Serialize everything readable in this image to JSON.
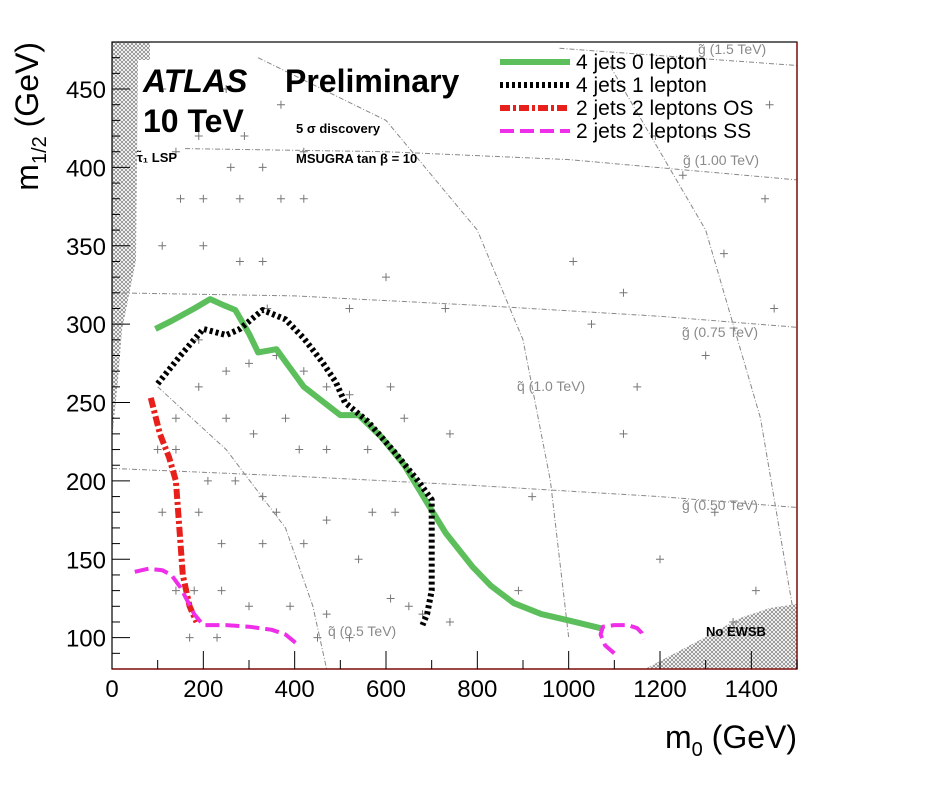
{
  "chart_data": {
    "type": "line",
    "title": "ATLAS Preliminary",
    "energy": "10 TeV",
    "discovery": "5 σ discovery",
    "model": "MSUGRA tan β = 10",
    "lsp_label": "τ̃₁ LSP",
    "no_ewsb_label": "No EWSB",
    "xlabel_main": "m",
    "xlabel_sub": "0",
    "xlabel_unit": " (GeV)",
    "ylabel_main": "m",
    "ylabel_sub": "1/2",
    "ylabel_unit": " (GeV)",
    "xlim": [
      0,
      1500
    ],
    "ylim": [
      80,
      480
    ],
    "xticks": [
      0,
      200,
      400,
      600,
      800,
      1000,
      1200,
      1400
    ],
    "yticks": [
      100,
      150,
      200,
      250,
      300,
      350,
      400,
      450
    ],
    "series": [
      {
        "name": "4 jets 0 lepton",
        "color": "#5cbf5c",
        "style": "solid",
        "x": [
          95,
          130,
          180,
          215,
          245,
          270,
          300,
          320,
          360,
          385,
          420,
          460,
          500,
          540,
          590,
          640,
          690,
          730,
          790,
          830,
          880,
          940,
          1000,
          1070
        ],
        "y": [
          297,
          302,
          310,
          316,
          312,
          309,
          294,
          282,
          284,
          274,
          260,
          251,
          242,
          242,
          228,
          210,
          186,
          167,
          145,
          133,
          122,
          115,
          111,
          106
        ]
      },
      {
        "name": "4 jets 1 lepton",
        "color": "#000000",
        "style": "dotted",
        "x": [
          100,
          150,
          200,
          250,
          280,
          330,
          380,
          420,
          460,
          490,
          510,
          560,
          620,
          670,
          700,
          700,
          690,
          680
        ],
        "y": [
          262,
          280,
          297,
          293,
          297,
          309,
          303,
          291,
          276,
          263,
          250,
          238,
          218,
          200,
          188,
          130,
          115,
          108
        ]
      },
      {
        "name": "2 jets 2 leptons OS",
        "color": "#e8201c",
        "style": "dashdot",
        "x": [
          85,
          105,
          125,
          140,
          145,
          150,
          155,
          170,
          185
        ],
        "y": [
          253,
          230,
          215,
          200,
          180,
          160,
          140,
          120,
          110
        ]
      },
      {
        "name": "2 jets 2 leptons SS",
        "color": "#ee2ee8",
        "style": "dashed",
        "x": [
          50,
          80,
          110,
          130,
          150,
          180,
          200,
          250,
          300,
          350,
          380,
          405
        ],
        "y": [
          142,
          144,
          143,
          140,
          132,
          115,
          108,
          108,
          107,
          105,
          102,
          96
        ]
      },
      {
        "name": "2 jets 2 leptons SS (high m0)",
        "color": "#ee2ee8",
        "style": "dashed",
        "x": [
          1100,
          1080,
          1070,
          1075,
          1100,
          1130,
          1150,
          1160,
          1165
        ],
        "y": [
          90,
          95,
          102,
          107,
          108,
          108,
          106,
          103,
          99
        ]
      }
    ],
    "legend": [
      {
        "label": "4 jets 0 lepton",
        "color": "#5cbf5c",
        "style": "solid"
      },
      {
        "label": "4 jets 1 lepton",
        "color": "#000000",
        "style": "dotted"
      },
      {
        "label": "2 jets 2 leptons OS",
        "color": "#e8201c",
        "style": "dashdot"
      },
      {
        "label": "2 jets 2 leptons SS",
        "color": "#ee2ee8",
        "style": "dashed"
      }
    ],
    "mass_contours": [
      {
        "label": "g̃ (1.5 TeV)",
        "x": [
          980,
          1500
        ],
        "y": [
          476,
          465
        ]
      },
      {
        "label": "g̃ (1.00 TeV)",
        "x": [
          160,
          600,
          1000,
          1500
        ],
        "y": [
          412,
          410,
          405,
          392
        ]
      },
      {
        "label": "g̃ (0.75 TeV)",
        "x": [
          0,
          400,
          800,
          1200,
          1500
        ],
        "y": [
          320,
          318,
          312,
          305,
          298
        ]
      },
      {
        "label": "g̃ (0.50 TeV)",
        "x": [
          0,
          400,
          800,
          1200,
          1500
        ],
        "y": [
          208,
          203,
          197,
          190,
          183
        ]
      },
      {
        "label": "q̃ (1.0 TeV)",
        "x": [
          320,
          600,
          800,
          900,
          960,
          1000
        ],
        "y": [
          470,
          430,
          360,
          290,
          200,
          100
        ]
      },
      {
        "label": "q̃ (0.5 TeV)",
        "x": [
          100,
          250,
          380,
          440,
          470
        ],
        "y": [
          260,
          220,
          170,
          120,
          80
        ]
      },
      {
        "label": "q̃ (1.5 TeV)",
        "x": [
          1080,
          1300,
          1420,
          1490
        ],
        "y": [
          470,
          360,
          240,
          120
        ]
      }
    ],
    "markers": [
      [
        110,
        450
      ],
      [
        250,
        450
      ],
      [
        370,
        440
      ],
      [
        140,
        410
      ],
      [
        190,
        420
      ],
      [
        290,
        420
      ],
      [
        260,
        400
      ],
      [
        330,
        400
      ],
      [
        420,
        410
      ],
      [
        150,
        380
      ],
      [
        200,
        380
      ],
      [
        280,
        380
      ],
      [
        370,
        380
      ],
      [
        420,
        380
      ],
      [
        200,
        350
      ],
      [
        110,
        350
      ],
      [
        280,
        340
      ],
      [
        330,
        340
      ],
      [
        340,
        310
      ],
      [
        520,
        310
      ],
      [
        600,
        330
      ],
      [
        730,
        310
      ],
      [
        190,
        290
      ],
      [
        250,
        270
      ],
      [
        300,
        275
      ],
      [
        360,
        280
      ],
      [
        420,
        270
      ],
      [
        470,
        260
      ],
      [
        520,
        255
      ],
      [
        610,
        260
      ],
      [
        640,
        240
      ],
      [
        140,
        240
      ],
      [
        190,
        260
      ],
      [
        250,
        240
      ],
      [
        310,
        230
      ],
      [
        380,
        240
      ],
      [
        410,
        220
      ],
      [
        470,
        220
      ],
      [
        560,
        220
      ],
      [
        740,
        230
      ],
      [
        100,
        220
      ],
      [
        140,
        220
      ],
      [
        210,
        200
      ],
      [
        270,
        200
      ],
      [
        330,
        190
      ],
      [
        360,
        180
      ],
      [
        470,
        175
      ],
      [
        570,
        180
      ],
      [
        110,
        180
      ],
      [
        190,
        180
      ],
      [
        240,
        160
      ],
      [
        330,
        160
      ],
      [
        420,
        160
      ],
      [
        540,
        150
      ],
      [
        620,
        180
      ],
      [
        140,
        130
      ],
      [
        180,
        130
      ],
      [
        240,
        130
      ],
      [
        300,
        120
      ],
      [
        390,
        120
      ],
      [
        470,
        115
      ],
      [
        520,
        100
      ],
      [
        610,
        125
      ],
      [
        450,
        100
      ],
      [
        170,
        100
      ],
      [
        230,
        100
      ],
      [
        650,
        120
      ],
      [
        680,
        115
      ],
      [
        740,
        110
      ],
      [
        1010,
        340
      ],
      [
        1120,
        320
      ],
      [
        1150,
        260
      ],
      [
        1300,
        280
      ],
      [
        1450,
        310
      ],
      [
        1440,
        440
      ],
      [
        1250,
        395
      ],
      [
        1340,
        345
      ],
      [
        1190,
        420
      ],
      [
        1050,
        300
      ],
      [
        1320,
        180
      ],
      [
        1360,
        110
      ],
      [
        1200,
        150
      ],
      [
        1410,
        130
      ],
      [
        890,
        130
      ],
      [
        920,
        190
      ],
      [
        1120,
        230
      ],
      [
        1300,
        420
      ],
      [
        1430,
        380
      ]
    ]
  }
}
